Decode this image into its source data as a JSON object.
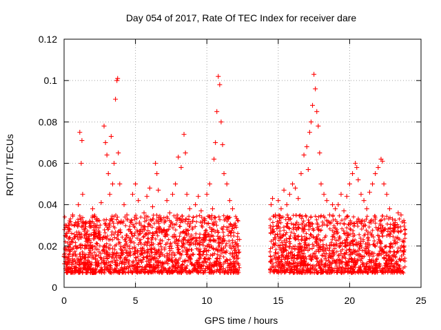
{
  "chart_data": {
    "type": "scatter",
    "title": "Day 054 of 2017, Rate Of TEC Index for receiver dare",
    "xlabel": "GPS time / hours",
    "ylabel": "ROTI / TECUs",
    "xlim": [
      0,
      25
    ],
    "ylim": [
      0,
      0.12
    ],
    "xticks": [
      0,
      5,
      10,
      15,
      20,
      25
    ],
    "xtick_labels": [
      "0",
      "5",
      "10",
      "15",
      "20",
      "25"
    ],
    "yticks": [
      0,
      0.02,
      0.04,
      0.06,
      0.08,
      0.1,
      0.12
    ],
    "ytick_labels": [
      "0",
      "0.02",
      "0.04",
      "0.06",
      "0.08",
      "0.1",
      "0.12"
    ],
    "grid": true,
    "legend": "none",
    "marker": "+",
    "color": "#ff0000",
    "series": [
      {
        "x": [
          0.0,
          0.1,
          0.2,
          0.3,
          0.4,
          0.5,
          0.6,
          0.8,
          1.0,
          1.1,
          1.2,
          1.25,
          1.3,
          1.4,
          1.6,
          1.8,
          2.0,
          2.2,
          2.4,
          2.6,
          2.8,
          2.9,
          3.0,
          3.1,
          3.2,
          3.3,
          3.4,
          3.5,
          3.6,
          3.7,
          3.75,
          3.8,
          3.9,
          4.0,
          4.2,
          4.4,
          4.6,
          4.8,
          5.0,
          5.2,
          5.4,
          5.6,
          5.8,
          6.0,
          6.2,
          6.4,
          6.5,
          6.6,
          6.8,
          7.0,
          7.2,
          7.4,
          7.6,
          7.8,
          8.0,
          8.2,
          8.4,
          8.5,
          8.6,
          8.8,
          9.0,
          9.2,
          9.4,
          9.6,
          9.8,
          10.0,
          10.2,
          10.4,
          10.5,
          10.6,
          10.7,
          10.8,
          10.9,
          11.0,
          11.1,
          11.2,
          11.4,
          11.6,
          11.8,
          12.0,
          12.2,
          14.5,
          14.6,
          14.8,
          15.0,
          15.2,
          15.4,
          15.6,
          15.8,
          16.0,
          16.2,
          16.4,
          16.6,
          16.8,
          17.0,
          17.1,
          17.2,
          17.3,
          17.4,
          17.5,
          17.6,
          17.7,
          17.8,
          17.9,
          18.0,
          18.2,
          18.4,
          18.6,
          18.8,
          19.0,
          19.2,
          19.4,
          19.6,
          19.8,
          20.0,
          20.2,
          20.4,
          20.5,
          20.6,
          20.8,
          21.0,
          21.2,
          21.4,
          21.6,
          21.8,
          22.0,
          22.2,
          22.3,
          22.4,
          22.6,
          22.8,
          23.0,
          23.2,
          23.4,
          23.6,
          23.8
        ],
        "y": [
          0.015,
          0.025,
          0.018,
          0.03,
          0.012,
          0.022,
          0.035,
          0.016,
          0.04,
          0.075,
          0.06,
          0.071,
          0.045,
          0.028,
          0.02,
          0.032,
          0.038,
          0.014,
          0.025,
          0.041,
          0.078,
          0.07,
          0.064,
          0.055,
          0.045,
          0.073,
          0.05,
          0.06,
          0.091,
          0.1,
          0.101,
          0.065,
          0.05,
          0.032,
          0.04,
          0.035,
          0.028,
          0.045,
          0.05,
          0.042,
          0.03,
          0.036,
          0.044,
          0.048,
          0.039,
          0.06,
          0.055,
          0.047,
          0.033,
          0.028,
          0.042,
          0.036,
          0.045,
          0.05,
          0.063,
          0.058,
          0.074,
          0.065,
          0.045,
          0.038,
          0.032,
          0.04,
          0.044,
          0.037,
          0.033,
          0.045,
          0.05,
          0.038,
          0.062,
          0.07,
          0.085,
          0.102,
          0.098,
          0.08,
          0.069,
          0.055,
          0.05,
          0.042,
          0.038,
          0.03,
          0.02,
          0.04,
          0.043,
          0.035,
          0.042,
          0.038,
          0.047,
          0.04,
          0.045,
          0.05,
          0.048,
          0.043,
          0.055,
          0.064,
          0.068,
          0.057,
          0.075,
          0.08,
          0.088,
          0.103,
          0.096,
          0.085,
          0.078,
          0.065,
          0.05,
          0.045,
          0.042,
          0.035,
          0.04,
          0.038,
          0.04,
          0.045,
          0.037,
          0.044,
          0.05,
          0.055,
          0.06,
          0.058,
          0.052,
          0.045,
          0.042,
          0.038,
          0.046,
          0.05,
          0.055,
          0.058,
          0.062,
          0.061,
          0.05,
          0.045,
          0.038,
          0.033,
          0.03,
          0.036,
          0.035,
          0.02
        ]
      }
    ]
  }
}
